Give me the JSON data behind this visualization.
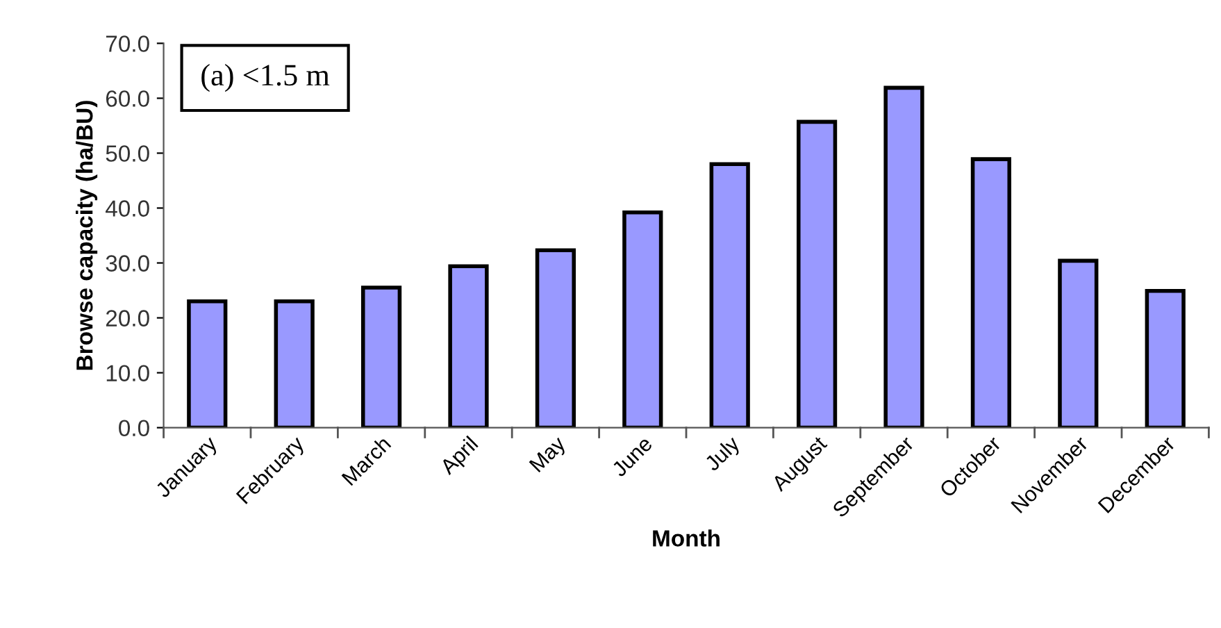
{
  "chart_data": {
    "type": "bar",
    "categories": [
      "January",
      "February",
      "March",
      "April",
      "May",
      "June",
      "July",
      "August",
      "September",
      "October",
      "November",
      "December"
    ],
    "values": [
      23.0,
      23.0,
      25.5,
      29.4,
      32.3,
      39.2,
      48.0,
      55.7,
      61.9,
      48.9,
      30.4,
      24.9
    ],
    "color": "#9999ff",
    "xlabel": "Month",
    "ylabel": "Browse capacity (ha/BU)",
    "annotations": [
      "(a) <1.5 m"
    ],
    "ylim": [
      0,
      70
    ],
    "yticks": [
      {
        "value": 0,
        "label": "0.0"
      },
      {
        "value": 10,
        "label": "10.0"
      },
      {
        "value": 20,
        "label": "20.0"
      },
      {
        "value": 30,
        "label": "30.0"
      },
      {
        "value": 40,
        "label": "40.0"
      },
      {
        "value": 50,
        "label": "50.0"
      },
      {
        "value": 60,
        "label": "60.0"
      },
      {
        "value": 70,
        "label": "70.0"
      }
    ],
    "grid": false,
    "legend": false
  }
}
